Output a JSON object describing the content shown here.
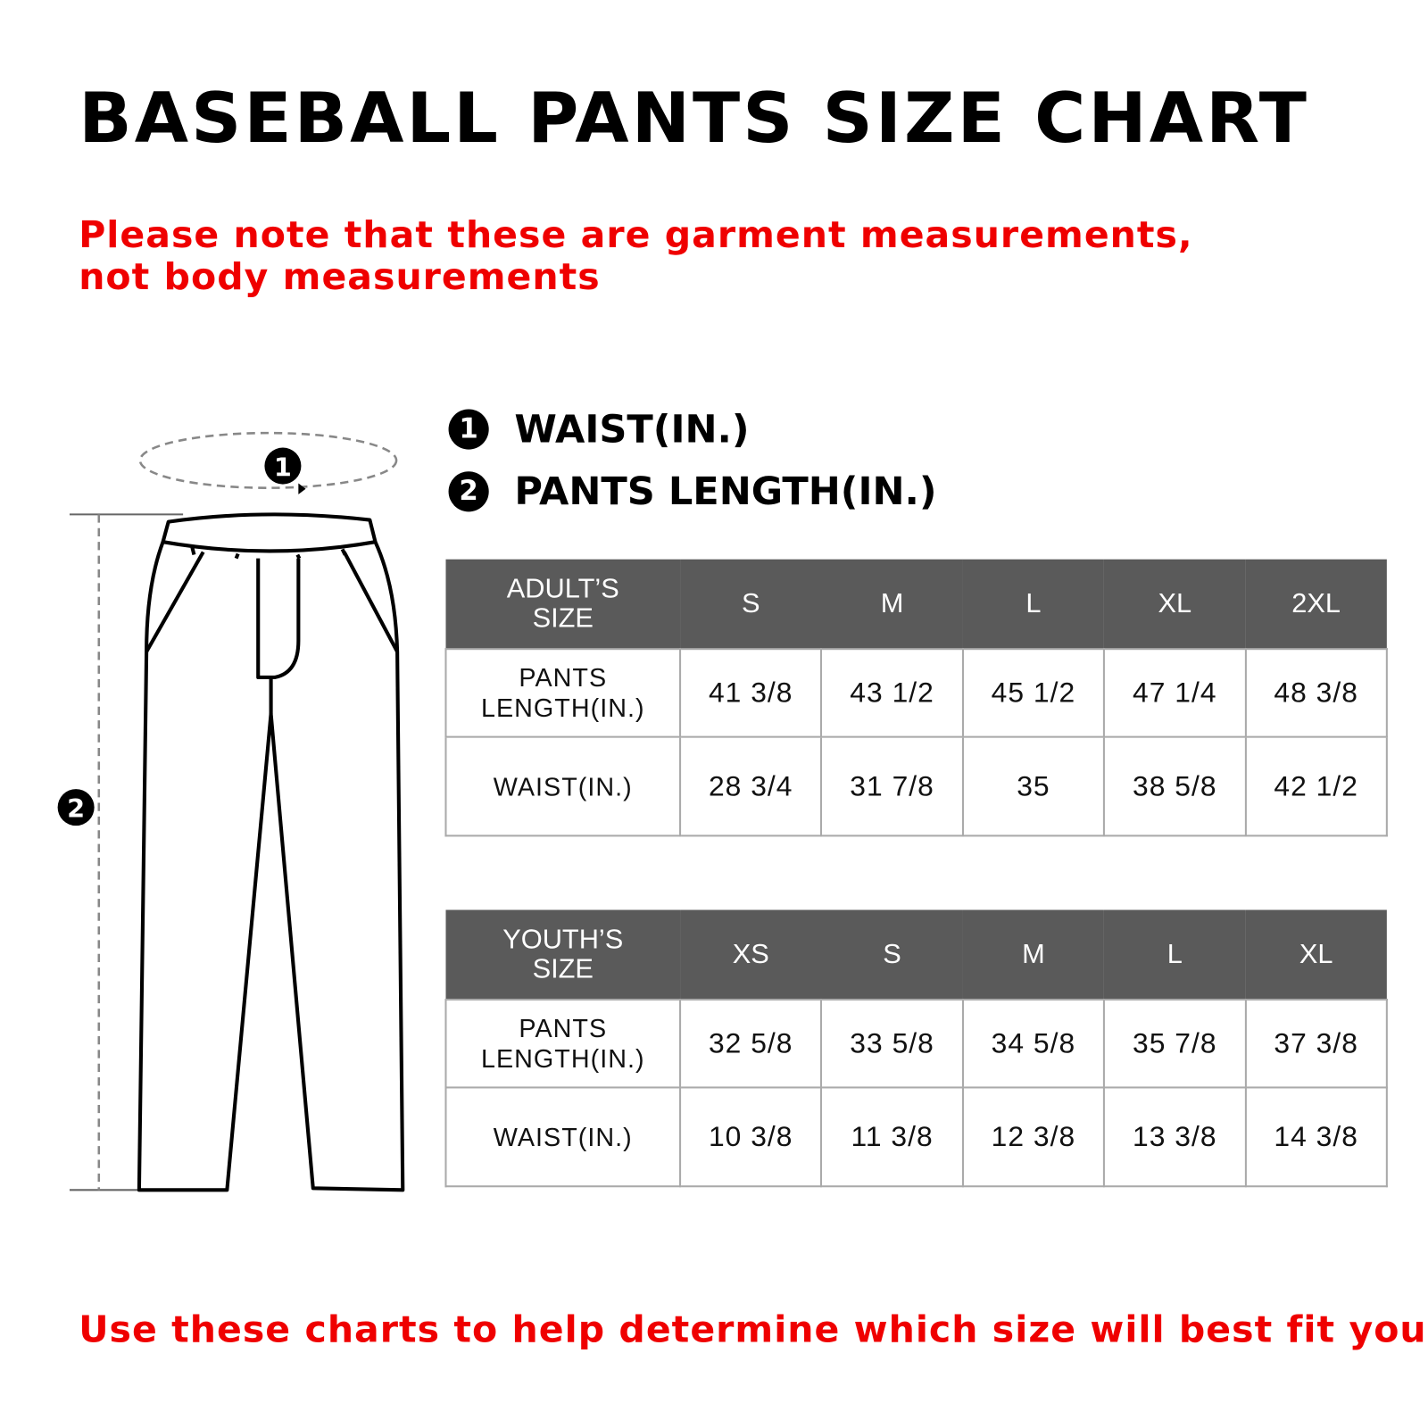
{
  "title": "BASEBALL PANTS SIZE CHART",
  "note": "Please note that these are garment measurements, not body measurements",
  "legend": [
    {
      "num": "1",
      "label": "WAIST(IN.)"
    },
    {
      "num": "2",
      "label": "PANTS LENGTH(IN.)"
    }
  ],
  "adult": {
    "header": [
      "ADULT’S SIZE",
      "S",
      "M",
      "L",
      "XL",
      "2XL"
    ],
    "rows": [
      {
        "label": "PANTS LENGTH(IN.)",
        "values": [
          "41 3/8",
          "43 1/2",
          "45 1/2",
          "47 1/4",
          "48 3/8"
        ]
      },
      {
        "label": "WAIST(IN.)",
        "values": [
          "28 3/4",
          "31 7/8",
          "35",
          "38 5/8",
          "42 1/2"
        ]
      }
    ]
  },
  "youth": {
    "header": [
      "YOUTH’S SIZE",
      "XS",
      "S",
      "M",
      "L",
      "XL"
    ],
    "rows": [
      {
        "label": "PANTS LENGTH(IN.)",
        "values": [
          "32 5/8",
          "33 5/8",
          "34  5/8",
          "35 7/8",
          "37 3/8"
        ]
      },
      {
        "label": "WAIST(IN.)",
        "values": [
          "10 3/8",
          "11 3/8",
          "12 3/8",
          "13 3/8",
          "14 3/8"
        ]
      }
    ]
  },
  "footer": "Use these charts to help determine which size will best fit you",
  "colors": {
    "accent": "#ef0000",
    "header_bg": "#5a5a5a"
  }
}
